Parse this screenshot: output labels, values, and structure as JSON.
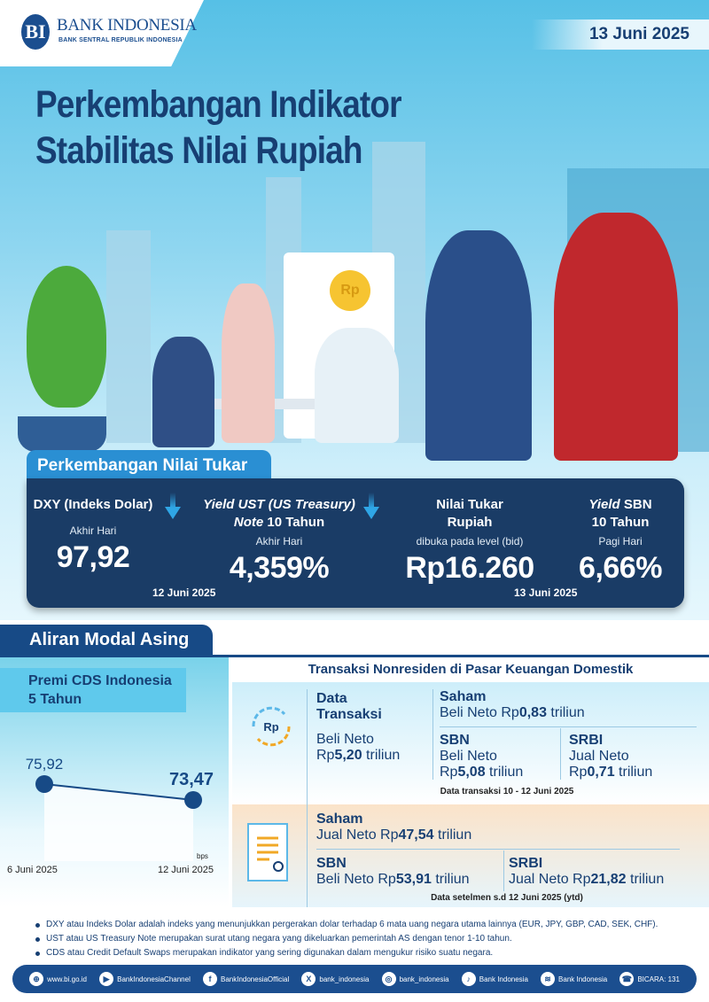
{
  "header": {
    "logo_name": "BANK INDONESIA",
    "logo_sub": "BANK SENTRAL REPUBLIK INDONESIA",
    "date": "13 Juni 2025",
    "title_line1": "Perkembangan Indikator",
    "title_line2": "Stabilitas Nilai Rupiah"
  },
  "nilai_tukar": {
    "tab": "Perkembangan Nilai Tukar",
    "indicators": [
      {
        "label": "DXY (Indeks Dolar)",
        "sub": "Akhir Hari",
        "value": "97,92",
        "trend": "down"
      },
      {
        "label_italic": "Yield UST (US Treasury)",
        "label2_italic": "Note",
        "label2": " 10 Tahun",
        "sub": "Akhir Hari",
        "value": "4,359%",
        "trend": "down"
      },
      {
        "label": "Nilai Tukar",
        "label2": "Rupiah",
        "sub": "dibuka pada level (bid)",
        "value": "Rp16.260"
      },
      {
        "label_italic": "Yield",
        "label": " SBN",
        "label2": "10 Tahun",
        "sub": "Pagi Hari",
        "value": "6,66%"
      }
    ],
    "date_left": "12 Juni 2025",
    "date_right": "13 Juni 2025"
  },
  "aliran": {
    "tab": "Aliran Modal Asing"
  },
  "chart_data": {
    "type": "line",
    "title": "Premi CDS Indonesia 5 Tahun",
    "title_line1": "Premi CDS Indonesia",
    "title_line2": "5 Tahun",
    "categories": [
      "6 Juni 2025",
      "12 Juni 2025"
    ],
    "values": [
      75.92,
      73.47
    ],
    "labels": [
      "75,92",
      "73,47"
    ],
    "unit": "bps",
    "color": "#174a86"
  },
  "transaksi": {
    "title": "Transaksi Nonresiden di Pasar Keuangan Domestik",
    "data_label1": "Data",
    "data_label2": "Transaksi",
    "total_pre": "Beli Neto",
    "total_rp": "Rp",
    "total_val": "5,20",
    "total_unit": " triliun",
    "saham": {
      "label": "Saham",
      "text": "Beli Neto Rp",
      "val": "0,83",
      "unit": " triliun"
    },
    "sbn": {
      "label": "SBN",
      "text": "Beli Neto",
      "rp": "Rp",
      "val": "5,08",
      "unit": " triliun"
    },
    "srbi": {
      "label": "SRBI",
      "text": "Jual Neto",
      "rp": "Rp",
      "val": "0,71",
      "unit": " triliun"
    },
    "note": "Data transaksi 10 - 12 Juni 2025",
    "ytd_saham": {
      "label": "Saham",
      "text": "Jual Neto Rp",
      "val": "47,54",
      "unit": " triliun"
    },
    "ytd_sbn": {
      "label": "SBN",
      "text": "Beli Neto Rp",
      "val": "53,91",
      "unit": " triliun"
    },
    "ytd_srbi": {
      "label": "SRBI",
      "text": "Jual Neto Rp",
      "val": "21,82",
      "unit": " triliun"
    },
    "ytd_note": "Data setelmen s.d 12 Juni 2025 (ytd)"
  },
  "notes": [
    "DXY atau Indeks Dolar adalah indeks yang menunjukkan pergerakan dolar terhadap 6 mata uang negara utama lainnya (EUR, JPY, GBP, CAD, SEK, CHF).",
    "UST atau US Treasury Note merupakan surat utang negara yang dikeluarkan  pemerintah AS dengan tenor 1-10 tahun.",
    "CDS atau Credit Default Swaps merupakan indikator  yang sering digunakan dalam mengukur risiko suatu negara."
  ],
  "footer": [
    {
      "icon": "globe-icon",
      "glyph": "⊕",
      "text": "www.bi.go.id"
    },
    {
      "icon": "youtube-icon",
      "glyph": "▶",
      "text": "BankIndonesiaChannel"
    },
    {
      "icon": "facebook-icon",
      "glyph": "f",
      "text": "BankIndonesiaOfficial"
    },
    {
      "icon": "x-icon",
      "glyph": "X",
      "text": "bank_indonesia"
    },
    {
      "icon": "instagram-icon",
      "glyph": "◎",
      "text": "bank_indonesia"
    },
    {
      "icon": "tiktok-icon",
      "glyph": "♪",
      "text": "Bank Indonesia"
    },
    {
      "icon": "spotify-icon",
      "glyph": "≋",
      "text": "Bank Indonesia"
    },
    {
      "icon": "bicara-icon",
      "glyph": "☎",
      "text": "BICARA: 131"
    }
  ]
}
